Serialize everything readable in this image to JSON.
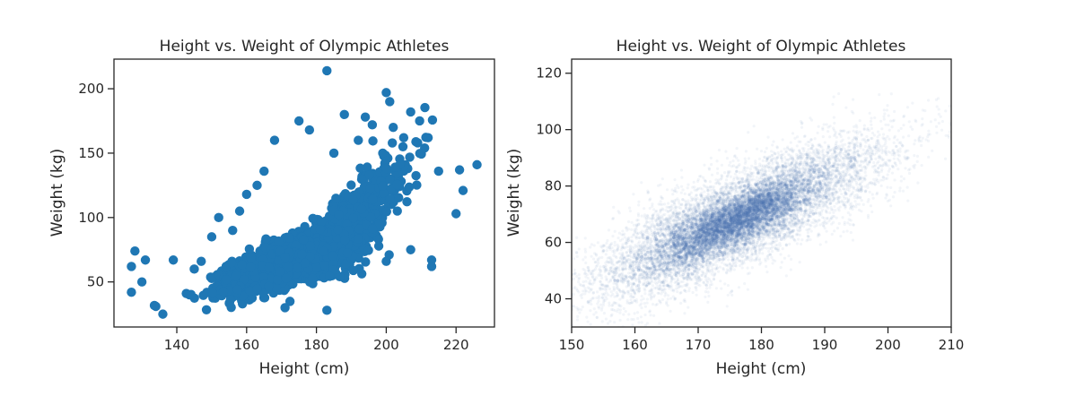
{
  "chart_data": [
    {
      "type": "scatter",
      "title": "Height vs. Weight of Olympic Athletes",
      "xlabel": "Height (cm)",
      "ylabel": "Weight (kg)",
      "xlim": [
        122,
        231
      ],
      "ylim": [
        15,
        223
      ],
      "xticks": [
        140,
        160,
        180,
        200,
        220
      ],
      "yticks": [
        50,
        100,
        150,
        200
      ],
      "grid": false,
      "marker_color": "#1f77b4",
      "cloud": {
        "center_x": 178,
        "center_y": 73,
        "sd_x": 11,
        "sd_y": 14,
        "correlation": 0.8
      },
      "points": [
        {
          "x": 183,
          "y": 214
        },
        {
          "x": 200,
          "y": 197
        },
        {
          "x": 201,
          "y": 190
        },
        {
          "x": 188,
          "y": 180
        },
        {
          "x": 194,
          "y": 178
        },
        {
          "x": 207,
          "y": 182
        },
        {
          "x": 202,
          "y": 170
        },
        {
          "x": 212,
          "y": 162
        },
        {
          "x": 196,
          "y": 172
        },
        {
          "x": 175,
          "y": 175
        },
        {
          "x": 168,
          "y": 160
        },
        {
          "x": 178,
          "y": 168
        },
        {
          "x": 205,
          "y": 162
        },
        {
          "x": 209,
          "y": 158
        },
        {
          "x": 226,
          "y": 141
        },
        {
          "x": 221,
          "y": 137
        },
        {
          "x": 215,
          "y": 136
        },
        {
          "x": 222,
          "y": 121
        },
        {
          "x": 220,
          "y": 103
        },
        {
          "x": 213,
          "y": 67
        },
        {
          "x": 213,
          "y": 62
        },
        {
          "x": 207,
          "y": 75
        },
        {
          "x": 200,
          "y": 66
        },
        {
          "x": 128,
          "y": 74
        },
        {
          "x": 127,
          "y": 62
        },
        {
          "x": 131,
          "y": 67
        },
        {
          "x": 127,
          "y": 42
        },
        {
          "x": 130,
          "y": 50
        },
        {
          "x": 134,
          "y": 31
        },
        {
          "x": 136,
          "y": 25
        },
        {
          "x": 139,
          "y": 67
        },
        {
          "x": 147,
          "y": 66
        },
        {
          "x": 152,
          "y": 100
        },
        {
          "x": 158,
          "y": 105
        },
        {
          "x": 160,
          "y": 118
        },
        {
          "x": 165,
          "y": 136
        },
        {
          "x": 171,
          "y": 30
        },
        {
          "x": 183,
          "y": 28
        },
        {
          "x": 163,
          "y": 125
        },
        {
          "x": 185,
          "y": 150
        },
        {
          "x": 192,
          "y": 160
        },
        {
          "x": 199,
          "y": 150
        },
        {
          "x": 150,
          "y": 85
        },
        {
          "x": 145,
          "y": 60
        },
        {
          "x": 156,
          "y": 90
        }
      ]
    },
    {
      "type": "scatter",
      "title": "Height vs. Weight of Olympic Athletes",
      "xlabel": "Height (cm)",
      "ylabel": "Weight (kg)",
      "xlim": [
        150,
        210
      ],
      "ylim": [
        30,
        125
      ],
      "xticks": [
        150,
        160,
        170,
        180,
        190,
        200,
        210
      ],
      "yticks": [
        40,
        60,
        80,
        100,
        120
      ],
      "grid": false,
      "marker_color": "#4c72b0",
      "marker_opacity": 0.02,
      "cloud": {
        "center_x": 176,
        "center_y": 68,
        "sd_x": 10,
        "sd_y": 12,
        "correlation": 0.8
      }
    }
  ]
}
